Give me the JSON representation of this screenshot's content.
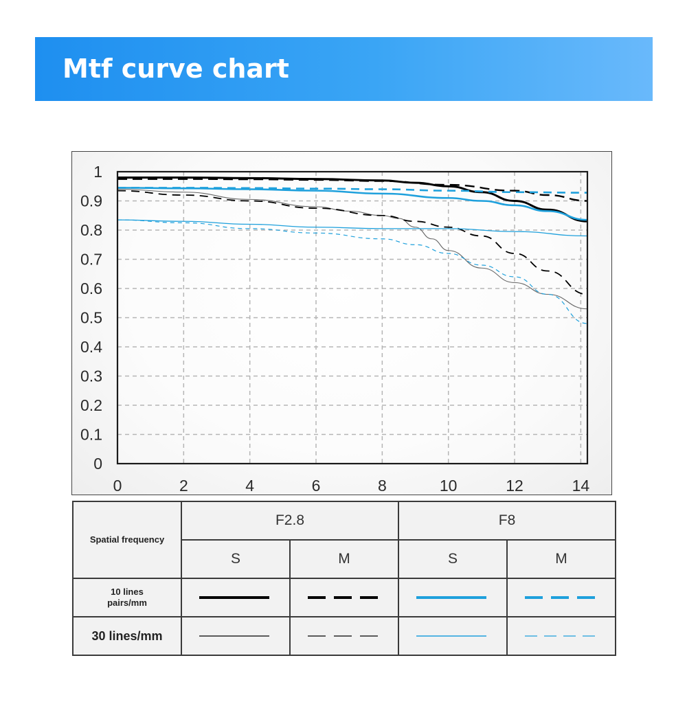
{
  "header": {
    "title": "Mtf curve chart"
  },
  "colors": {
    "banner_start": "#1e8ff0",
    "banner_end": "#69b9fb",
    "f28": "#000000",
    "f8": "#1ea0dc",
    "thin_gray": "#666666"
  },
  "chart_data": {
    "type": "line",
    "title": "",
    "xlabel": "",
    "ylabel": "",
    "xlim": [
      0,
      14.2
    ],
    "ylim": [
      0,
      1
    ],
    "xticks": [
      0,
      2,
      4,
      6,
      8,
      10,
      12,
      14
    ],
    "xtick_labels": [
      "0",
      "2",
      "4",
      "6",
      "8",
      "10",
      "12",
      "14"
    ],
    "yticks": [
      0,
      0.1,
      0.2,
      0.3,
      0.4,
      0.5,
      0.6,
      0.7,
      0.8,
      0.9,
      1
    ],
    "ytick_labels": [
      "0",
      "0.1",
      "0.2",
      "0.3",
      "0.4",
      "0.5",
      "0.6",
      "0.7",
      "0.8",
      "0.9",
      "1"
    ],
    "grid": true,
    "series": [
      {
        "name": "F2.8 S 10 lines pairs/mm",
        "color": "#000000",
        "width": 3,
        "dash": "",
        "x": [
          0,
          2,
          4,
          6,
          8,
          9,
          10,
          11,
          12,
          13,
          14.2
        ],
        "y": [
          0.98,
          0.98,
          0.978,
          0.975,
          0.97,
          0.962,
          0.95,
          0.93,
          0.9,
          0.87,
          0.83
        ]
      },
      {
        "name": "F2.8 M 10 lines pairs/mm",
        "color": "#000000",
        "width": 2.4,
        "dash": "14 8",
        "x": [
          0,
          2,
          4,
          6,
          8,
          10,
          12,
          13,
          14.2
        ],
        "y": [
          0.975,
          0.975,
          0.974,
          0.972,
          0.968,
          0.955,
          0.935,
          0.92,
          0.9
        ]
      },
      {
        "name": "F2.8 S 30 lines/mm",
        "color": "#666666",
        "width": 1.1,
        "dash": "",
        "x": [
          0,
          2,
          4,
          6,
          7,
          8,
          8.5,
          9,
          9.5,
          10,
          11,
          12,
          13,
          14.2
        ],
        "y": [
          0.94,
          0.93,
          0.905,
          0.88,
          0.865,
          0.85,
          0.84,
          0.81,
          0.77,
          0.73,
          0.67,
          0.62,
          0.58,
          0.53
        ]
      },
      {
        "name": "F2.8 M 30 lines/mm",
        "color": "#000000",
        "width": 1.8,
        "dash": "12 8",
        "x": [
          0,
          2,
          4,
          6,
          8,
          9,
          10,
          11,
          12,
          13,
          14.2
        ],
        "y": [
          0.935,
          0.92,
          0.9,
          0.875,
          0.85,
          0.83,
          0.81,
          0.78,
          0.72,
          0.66,
          0.58
        ]
      },
      {
        "name": "F8 S 10 lines pairs/mm",
        "color": "#1ea0dc",
        "width": 2.6,
        "dash": "",
        "x": [
          0,
          2,
          4,
          6,
          8,
          10,
          11,
          12,
          13,
          14.2
        ],
        "y": [
          0.945,
          0.943,
          0.94,
          0.935,
          0.925,
          0.91,
          0.9,
          0.885,
          0.865,
          0.835
        ]
      },
      {
        "name": "F8 M 10 lines pairs/mm",
        "color": "#1ea0dc",
        "width": 2.6,
        "dash": "12 8",
        "x": [
          0,
          2,
          4,
          6,
          8,
          10,
          12,
          14.2
        ],
        "y": [
          0.945,
          0.945,
          0.944,
          0.942,
          0.94,
          0.935,
          0.93,
          0.928
        ]
      },
      {
        "name": "F8 S 30 lines/mm",
        "color": "#1ea0dc",
        "width": 1.3,
        "dash": "",
        "x": [
          0,
          2,
          4,
          6,
          8,
          10,
          12,
          14.2
        ],
        "y": [
          0.835,
          0.83,
          0.82,
          0.81,
          0.805,
          0.805,
          0.795,
          0.78
        ]
      },
      {
        "name": "F8 M 30 lines/mm",
        "color": "#1ea0dc",
        "width": 1.2,
        "dash": "6 5",
        "x": [
          0,
          2,
          4,
          6,
          8,
          9,
          10,
          11,
          12,
          13,
          14.2
        ],
        "y": [
          0.835,
          0.825,
          0.805,
          0.79,
          0.77,
          0.75,
          0.72,
          0.68,
          0.64,
          0.58,
          0.48
        ]
      }
    ]
  },
  "legend": {
    "spatial_frequency": "Spatial frequency",
    "group_f28": "F2.8",
    "group_f8": "F8",
    "col_s1": "S",
    "col_m1": "M",
    "col_s2": "S",
    "col_m2": "M",
    "row_10": "10 lines pairs/mm",
    "row_30": "30 lines/mm"
  }
}
